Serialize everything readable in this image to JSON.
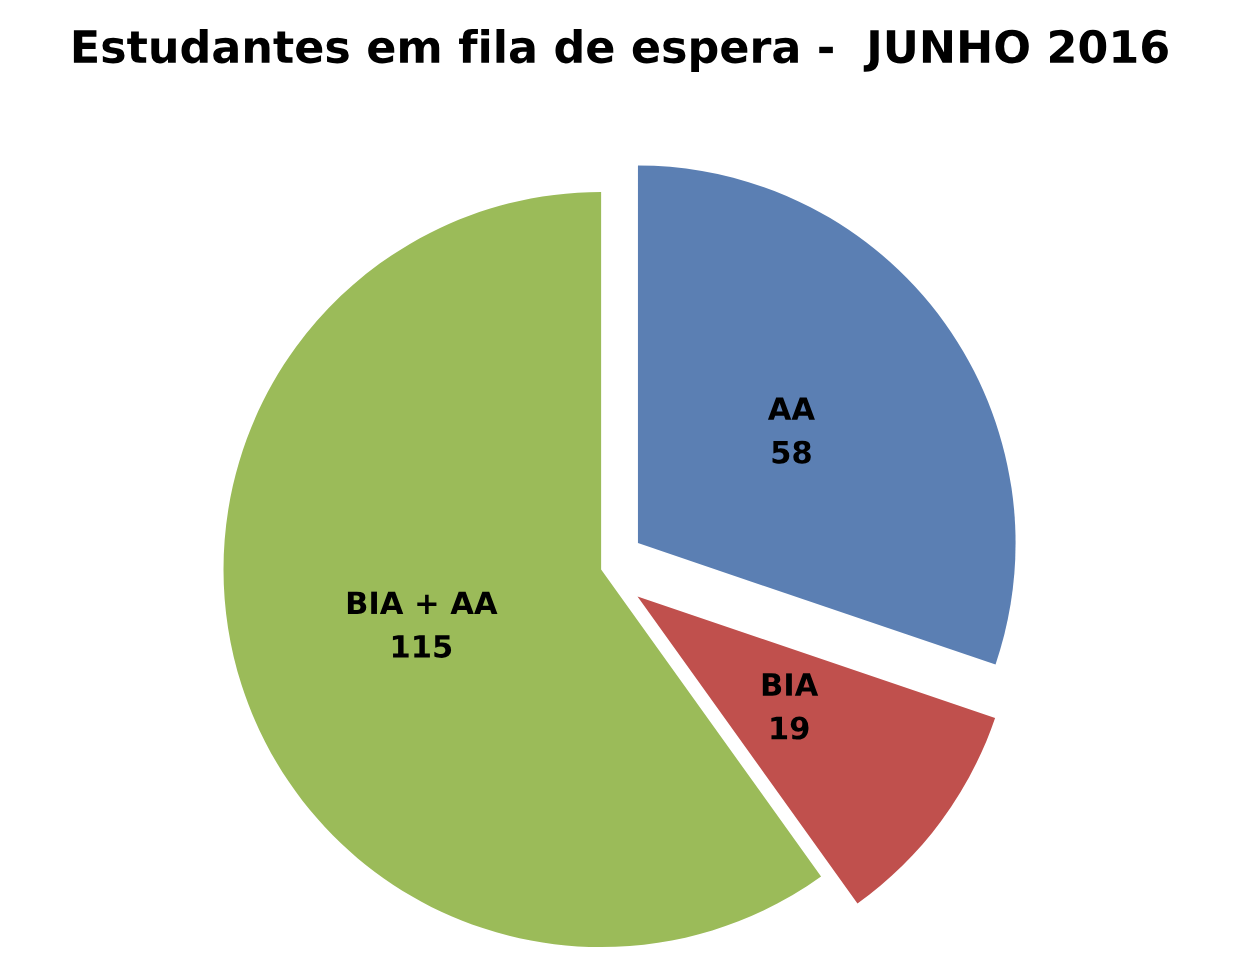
{
  "chart_data": {
    "type": "pie",
    "title": "Estudantes em fila de espera -  JUNHO 2016",
    "categories": [
      "AA",
      "BIA",
      "BIA + AA"
    ],
    "values": [
      58,
      19,
      115
    ],
    "colors": [
      "#5b7fb3",
      "#c0504d",
      "#9bbb59"
    ],
    "data_labels": true,
    "legend": false
  }
}
